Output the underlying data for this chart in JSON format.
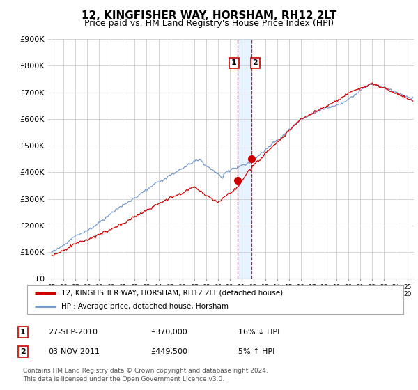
{
  "title": "12, KINGFISHER WAY, HORSHAM, RH12 2LT",
  "subtitle": "Price paid vs. HM Land Registry's House Price Index (HPI)",
  "ylim": [
    0,
    900000
  ],
  "yticks": [
    0,
    100000,
    200000,
    300000,
    400000,
    500000,
    600000,
    700000,
    800000,
    900000
  ],
  "ytick_labels": [
    "£0",
    "£100K",
    "£200K",
    "£300K",
    "£400K",
    "£500K",
    "£600K",
    "£700K",
    "£800K",
    "£900K"
  ],
  "red_line_color": "#cc0000",
  "blue_line_color": "#7799cc",
  "vline_color": "#cc0000",
  "shade_color": "#ddeeff",
  "legend_label_red": "12, KINGFISHER WAY, HORSHAM, RH12 2LT (detached house)",
  "legend_label_blue": "HPI: Average price, detached house, Horsham",
  "table_rows": [
    {
      "num": "1",
      "date": "27-SEP-2010",
      "price": "£370,000",
      "hpi": "16% ↓ HPI"
    },
    {
      "num": "2",
      "date": "03-NOV-2011",
      "price": "£449,500",
      "hpi": "5% ↑ HPI"
    }
  ],
  "footer": "Contains HM Land Registry data © Crown copyright and database right 2024.\nThis data is licensed under the Open Government Licence v3.0.",
  "background_color": "#ffffff",
  "grid_color": "#cccccc",
  "title_fontsize": 11,
  "subtitle_fontsize": 9,
  "tick_fontsize": 8
}
